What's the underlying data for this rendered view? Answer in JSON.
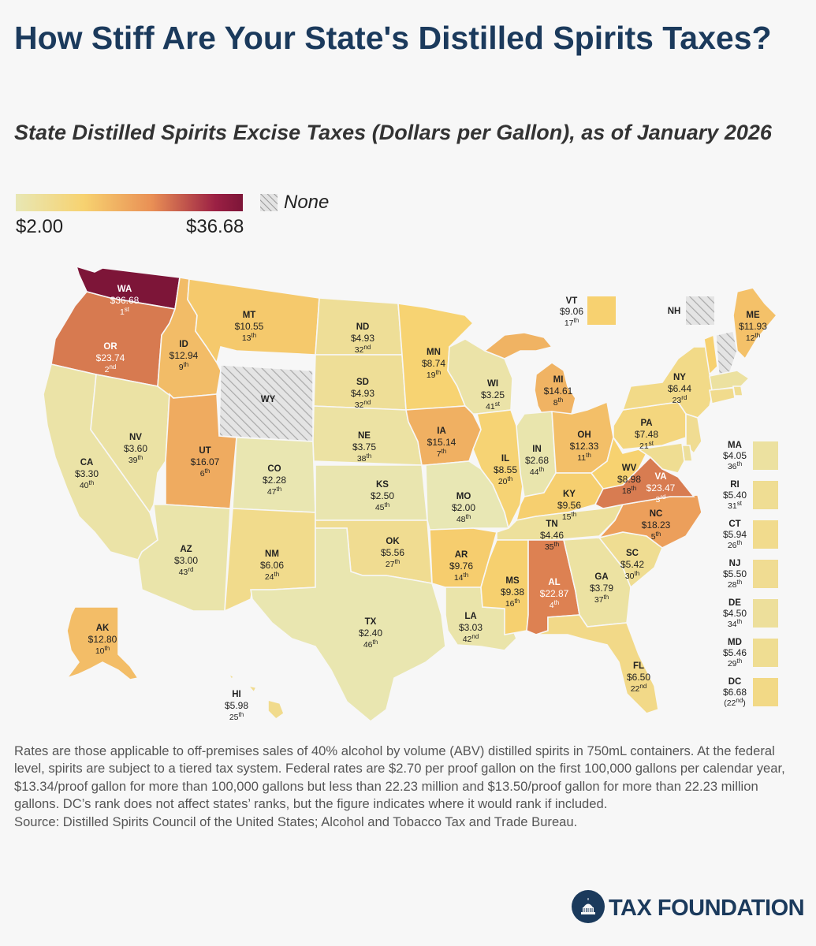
{
  "title": "How Stiff Are Your State's Distilled Spirits Taxes?",
  "subtitle": "State Distilled Spirits Excise Taxes (Dollars per Gallon), as of January 2026",
  "legend": {
    "min_label": "$2.00",
    "max_label": "$36.68",
    "none_label": "None",
    "colors": {
      "low": "#e8e7b4",
      "mid_low": "#f7d270",
      "mid_high": "#e98f55",
      "high": "#7d1538",
      "none": "#d9d9d9"
    }
  },
  "chart_data": {
    "type": "choropleth",
    "unit": "Dollars per Gallon",
    "scale_range": [
      2.0,
      36.68
    ],
    "states": [
      {
        "abbr": "WA",
        "rate": "$36.68",
        "rank": "1",
        "suffix": "st"
      },
      {
        "abbr": "OR",
        "rate": "$23.74",
        "rank": "2",
        "suffix": "nd"
      },
      {
        "abbr": "CA",
        "rate": "$3.30",
        "rank": "40",
        "suffix": "th"
      },
      {
        "abbr": "NV",
        "rate": "$3.60",
        "rank": "39",
        "suffix": "th"
      },
      {
        "abbr": "ID",
        "rate": "$12.94",
        "rank": "9",
        "suffix": "th"
      },
      {
        "abbr": "MT",
        "rate": "$10.55",
        "rank": "13",
        "suffix": "th"
      },
      {
        "abbr": "WY",
        "rate": "",
        "rank": "",
        "suffix": ""
      },
      {
        "abbr": "UT",
        "rate": "$16.07",
        "rank": "6",
        "suffix": "th"
      },
      {
        "abbr": "AZ",
        "rate": "$3.00",
        "rank": "43",
        "suffix": "rd"
      },
      {
        "abbr": "CO",
        "rate": "$2.28",
        "rank": "47",
        "suffix": "th"
      },
      {
        "abbr": "NM",
        "rate": "$6.06",
        "rank": "24",
        "suffix": "th"
      },
      {
        "abbr": "ND",
        "rate": "$4.93",
        "rank": "32",
        "suffix": "nd"
      },
      {
        "abbr": "SD",
        "rate": "$4.93",
        "rank": "32",
        "suffix": "nd"
      },
      {
        "abbr": "NE",
        "rate": "$3.75",
        "rank": "38",
        "suffix": "th"
      },
      {
        "abbr": "KS",
        "rate": "$2.50",
        "rank": "45",
        "suffix": "th"
      },
      {
        "abbr": "OK",
        "rate": "$5.56",
        "rank": "27",
        "suffix": "th"
      },
      {
        "abbr": "TX",
        "rate": "$2.40",
        "rank": "46",
        "suffix": "th"
      },
      {
        "abbr": "MN",
        "rate": "$8.74",
        "rank": "19",
        "suffix": "th"
      },
      {
        "abbr": "IA",
        "rate": "$15.14",
        "rank": "7",
        "suffix": "th"
      },
      {
        "abbr": "MO",
        "rate": "$2.00",
        "rank": "48",
        "suffix": "th"
      },
      {
        "abbr": "AR",
        "rate": "$9.76",
        "rank": "14",
        "suffix": "th"
      },
      {
        "abbr": "LA",
        "rate": "$3.03",
        "rank": "42",
        "suffix": "nd"
      },
      {
        "abbr": "WI",
        "rate": "$3.25",
        "rank": "41",
        "suffix": "st"
      },
      {
        "abbr": "IL",
        "rate": "$8.55",
        "rank": "20",
        "suffix": "th"
      },
      {
        "abbr": "MI",
        "rate": "$14.61",
        "rank": "8",
        "suffix": "th"
      },
      {
        "abbr": "IN",
        "rate": "$2.68",
        "rank": "44",
        "suffix": "th"
      },
      {
        "abbr": "OH",
        "rate": "$12.33",
        "rank": "11",
        "suffix": "th"
      },
      {
        "abbr": "KY",
        "rate": "$9.56",
        "rank": "15",
        "suffix": "th"
      },
      {
        "abbr": "TN",
        "rate": "$4.46",
        "rank": "35",
        "suffix": "th"
      },
      {
        "abbr": "MS",
        "rate": "$9.38",
        "rank": "16",
        "suffix": "th"
      },
      {
        "abbr": "AL",
        "rate": "$22.87",
        "rank": "4",
        "suffix": "th"
      },
      {
        "abbr": "GA",
        "rate": "$3.79",
        "rank": "37",
        "suffix": "th"
      },
      {
        "abbr": "FL",
        "rate": "$6.50",
        "rank": "22",
        "suffix": "nd"
      },
      {
        "abbr": "SC",
        "rate": "$5.42",
        "rank": "30",
        "suffix": "th"
      },
      {
        "abbr": "NC",
        "rate": "$18.23",
        "rank": "5",
        "suffix": "th"
      },
      {
        "abbr": "VA",
        "rate": "$23.47",
        "rank": "3",
        "suffix": "rd"
      },
      {
        "abbr": "WV",
        "rate": "$8.98",
        "rank": "18",
        "suffix": "th"
      },
      {
        "abbr": "PA",
        "rate": "$7.48",
        "rank": "21",
        "suffix": "st"
      },
      {
        "abbr": "NY",
        "rate": "$6.44",
        "rank": "23",
        "suffix": "rd"
      },
      {
        "abbr": "ME",
        "rate": "$11.93",
        "rank": "12",
        "suffix": "th"
      },
      {
        "abbr": "VT",
        "rate": "$9.06",
        "rank": "17",
        "suffix": "th"
      },
      {
        "abbr": "NH",
        "rate": "",
        "rank": "",
        "suffix": ""
      },
      {
        "abbr": "AK",
        "rate": "$12.80",
        "rank": "10",
        "suffix": "th"
      },
      {
        "abbr": "HI",
        "rate": "$5.98",
        "rank": "25",
        "suffix": "th"
      }
    ],
    "small_states": [
      {
        "abbr": "MA",
        "rate": "$4.05",
        "rank": "36",
        "suffix": "th"
      },
      {
        "abbr": "RI",
        "rate": "$5.40",
        "rank": "31",
        "suffix": "st"
      },
      {
        "abbr": "CT",
        "rate": "$5.94",
        "rank": "26",
        "suffix": "th"
      },
      {
        "abbr": "NJ",
        "rate": "$5.50",
        "rank": "28",
        "suffix": "th"
      },
      {
        "abbr": "DE",
        "rate": "$4.50",
        "rank": "34",
        "suffix": "th"
      },
      {
        "abbr": "MD",
        "rate": "$5.46",
        "rank": "29",
        "suffix": "th"
      },
      {
        "abbr": "DC",
        "rate": "$6.68",
        "rank": "22",
        "suffix": "nd",
        "parenthetical": true
      }
    ]
  },
  "notes": {
    "text": "Rates are those applicable to off-premises sales of 40% alcohol by volume (ABV) distilled spirits in 750mL containers. At the federal level, spirits are subject to a tiered tax system. Federal rates are $2.70 per proof gallon on the first 100,000 gallons per calendar year, $13.34/proof gallon for more than 100,000 gallons but less than 22.23 million and $13.50/proof gallon for more than 22.23 million gallons. DC’s rank does not affect states’ ranks, but the figure indicates where it would rank if included.",
    "source": "Source: Distilled Spirits Council of the United States; Alcohol and Tobacco Tax and Trade Bureau."
  },
  "logo": {
    "text": "TAX FOUNDATION"
  }
}
